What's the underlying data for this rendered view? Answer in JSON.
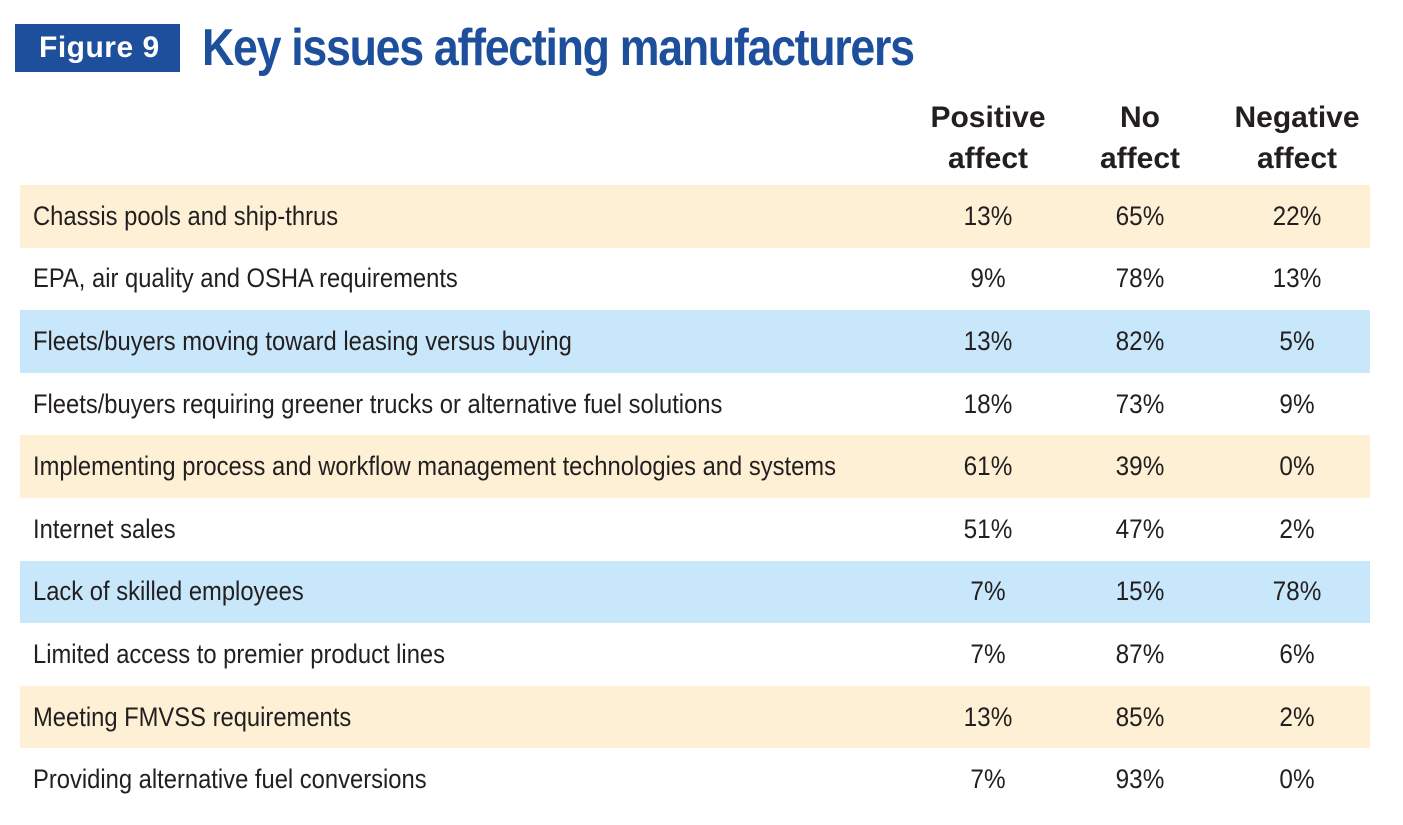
{
  "figure": {
    "badge": "Figure 9",
    "title": "Key issues affecting manufacturers"
  },
  "chart_data": {
    "type": "table",
    "title": "Key issues affecting manufacturers",
    "columns": [
      "Positive\naffect",
      "No\naffect",
      "Negative\naffect"
    ],
    "rows": [
      {
        "label": "Chassis pools and ship-thrus",
        "values": [
          "13%",
          "65%",
          "22%"
        ],
        "band": "tan"
      },
      {
        "label": "EPA, air quality and OSHA requirements",
        "values": [
          "9%",
          "78%",
          "13%"
        ],
        "band": "white"
      },
      {
        "label": "Fleets/buyers moving toward leasing versus buying",
        "values": [
          "13%",
          "82%",
          "5%"
        ],
        "band": "blue"
      },
      {
        "label": "Fleets/buyers requiring greener trucks or alternative fuel solutions",
        "values": [
          "18%",
          "73%",
          "9%"
        ],
        "band": "white"
      },
      {
        "label": "Implementing process and workflow management technologies and systems",
        "values": [
          "61%",
          "39%",
          "0%"
        ],
        "band": "tan"
      },
      {
        "label": "Internet sales",
        "values": [
          "51%",
          "47%",
          "2%"
        ],
        "band": "white"
      },
      {
        "label": "Lack of skilled employees",
        "values": [
          "7%",
          "15%",
          "78%"
        ],
        "band": "blue"
      },
      {
        "label": "Limited access to premier product lines",
        "values": [
          "7%",
          "87%",
          "6%"
        ],
        "band": "white"
      },
      {
        "label": "Meeting FMVSS requirements",
        "values": [
          "13%",
          "85%",
          "2%"
        ],
        "band": "tan"
      },
      {
        "label": "Providing alternative fuel conversions",
        "values": [
          "7%",
          "93%",
          "0%"
        ],
        "band": "white"
      }
    ]
  },
  "colors": {
    "accent": "#1d4f9c",
    "band_tan": "#fdf0d5",
    "band_blue": "#c8e7fa",
    "text": "#231f20"
  }
}
